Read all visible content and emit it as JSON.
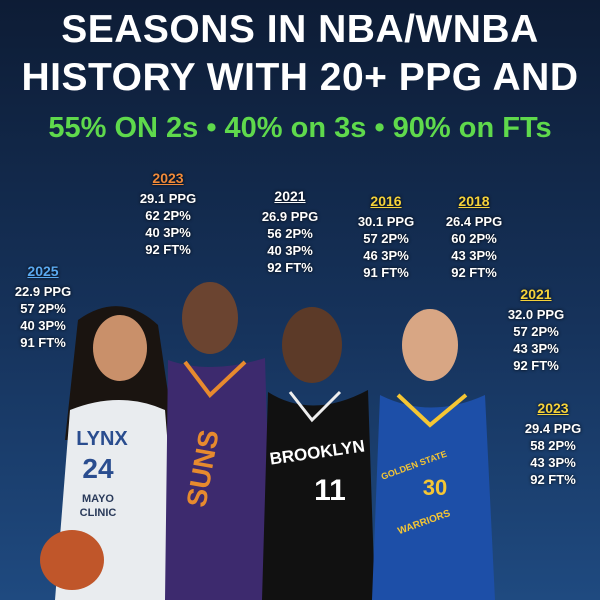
{
  "header": {
    "title_lines": [
      "SEASONS IN NBA/WNBA",
      "HISTORY WITH 20+ PPG AND"
    ],
    "subtitle": "55% ON 2s • 40% on 3s • 90% on FTs"
  },
  "seasons": [
    {
      "year": "2025",
      "color": "#5aa9f0",
      "stats": [
        "22.9 PPG",
        "57 2P%",
        "40 3P%",
        "91 FT%"
      ]
    },
    {
      "year": "2023",
      "color": "#f08a3a",
      "stats": [
        "29.1 PPG",
        "62 2P%",
        "40 3P%",
        "92 FT%"
      ]
    },
    {
      "year": "2021",
      "color": "#ffffff",
      "stats": [
        "26.9 PPG",
        "56 2P%",
        "40 3P%",
        "92 FT%"
      ]
    },
    {
      "year": "2016",
      "color": "#f5d23a",
      "stats": [
        "30.1 PPG",
        "57 2P%",
        "46 3P%",
        "91 FT%"
      ]
    },
    {
      "year": "2018",
      "color": "#f5d23a",
      "stats": [
        "26.4 PPG",
        "60 2P%",
        "43 3P%",
        "92 FT%"
      ]
    },
    {
      "year": "2021",
      "color": "#f5d23a",
      "stats": [
        "32.0 PPG",
        "57 2P%",
        "43 3P%",
        "92 FT%"
      ]
    },
    {
      "year": "2023",
      "color": "#f5d23a",
      "stats": [
        "29.4 PPG",
        "58 2P%",
        "43 3P%",
        "92 FT%"
      ]
    }
  ],
  "jerseys": {
    "lynx": [
      "LYNX",
      "24",
      "MAYO",
      "CLINIC"
    ],
    "suns": [
      "SUNS"
    ],
    "nets": [
      "BROOKLYN",
      "11"
    ],
    "warriors": [
      "GOLDEN STATE",
      "30",
      "WARRIORS"
    ]
  }
}
